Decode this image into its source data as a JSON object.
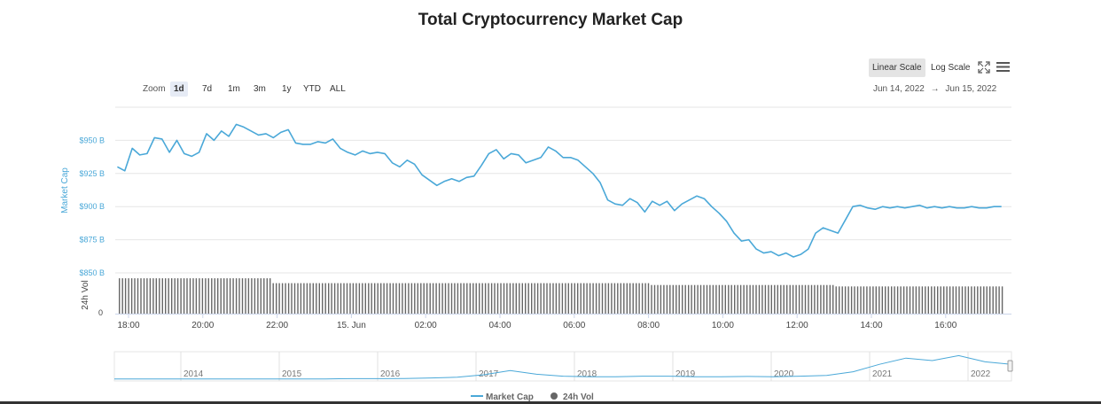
{
  "title": "Total Cryptocurrency Market Cap",
  "zoom": {
    "label": "Zoom",
    "buttons": [
      "1d",
      "7d",
      "1m",
      "3m",
      "1y",
      "YTD",
      "ALL"
    ],
    "active": "1d"
  },
  "scale": {
    "linear": "Linear Scale",
    "log": "Log Scale",
    "active": "Linear Scale"
  },
  "range": {
    "from": "Jun 14, 2022",
    "arrow": "→",
    "to": "Jun 15, 2022"
  },
  "icons": {
    "fullscreen": "fullscreen-icon",
    "menu": "hamburger-menu-icon"
  },
  "colors": {
    "market_cap": "#4aa8d8",
    "volume": "#666666",
    "accent": "#4aa8d8"
  },
  "chart_data": {
    "type": "line",
    "title": "Total Cryptocurrency Market Cap",
    "ylabel": "Market Cap",
    "y2label": "24h Vol",
    "yticks": [
      "$850 B",
      "$875 B",
      "$900 B",
      "$925 B",
      "$950 B"
    ],
    "ylim": [
      850,
      975
    ],
    "y2ticks": [
      "0"
    ],
    "xlabels": [
      "18:00",
      "20:00",
      "22:00",
      "15. Jun",
      "02:00",
      "04:00",
      "06:00",
      "08:00",
      "10:00",
      "12:00",
      "14:00",
      "16:00"
    ],
    "x_hours": [
      0,
      2,
      4,
      6,
      8,
      10,
      12,
      14,
      16,
      18,
      20,
      22
    ],
    "x_start_label": "Jun 14, 2022 17:50",
    "series": [
      {
        "name": "Market Cap",
        "unit": "$B",
        "x_hours": [
          -0.3,
          -0.1,
          0.1,
          0.3,
          0.5,
          0.7,
          0.9,
          1.1,
          1.3,
          1.5,
          1.7,
          1.9,
          2.1,
          2.3,
          2.5,
          2.7,
          2.9,
          3.1,
          3.3,
          3.5,
          3.7,
          3.9,
          4.1,
          4.3,
          4.5,
          4.7,
          4.9,
          5.1,
          5.3,
          5.5,
          5.7,
          5.9,
          6.1,
          6.3,
          6.5,
          6.7,
          6.9,
          7.1,
          7.3,
          7.5,
          7.7,
          7.9,
          8.1,
          8.3,
          8.5,
          8.7,
          8.9,
          9.1,
          9.3,
          9.5,
          9.7,
          9.9,
          10.1,
          10.3,
          10.5,
          10.7,
          10.9,
          11.1,
          11.3,
          11.5,
          11.7,
          11.9,
          12.1,
          12.3,
          12.5,
          12.7,
          12.9,
          13.1,
          13.3,
          13.5,
          13.7,
          13.9,
          14.1,
          14.3,
          14.5,
          14.7,
          14.9,
          15.1,
          15.3,
          15.5,
          15.7,
          15.9,
          16.1,
          16.3,
          16.5,
          16.7,
          16.9,
          17.1,
          17.3,
          17.5,
          17.7,
          17.9,
          18.1,
          18.3,
          18.5,
          18.7,
          18.9,
          19.1,
          19.3,
          19.5,
          19.7,
          19.9,
          20.1,
          20.3,
          20.5,
          20.7,
          20.9,
          21.1,
          21.3,
          21.5,
          21.7,
          21.9,
          22.1,
          22.3,
          22.5,
          22.7,
          22.9,
          23.1,
          23.3,
          23.5
        ],
        "values": [
          930,
          927,
          944,
          939,
          940,
          952,
          951,
          941,
          950,
          940,
          938,
          941,
          955,
          950,
          957,
          953,
          962,
          960,
          957,
          954,
          955,
          952,
          956,
          958,
          948,
          947,
          947,
          949,
          948,
          951,
          944,
          941,
          939,
          942,
          940,
          941,
          940,
          933,
          930,
          935,
          932,
          924,
          920,
          916,
          919,
          921,
          919,
          922,
          923,
          931,
          940,
          943,
          936,
          940,
          939,
          933,
          935,
          937,
          945,
          942,
          937,
          937,
          935,
          930,
          925,
          918,
          905,
          902,
          901,
          906,
          903,
          896,
          904,
          901,
          904,
          897,
          902,
          905,
          908,
          906,
          900,
          895,
          889,
          880,
          874,
          875,
          868,
          865,
          866,
          863,
          865,
          862,
          864,
          868,
          880,
          884,
          882,
          880,
          890,
          900,
          901,
          899,
          898,
          900,
          899,
          900,
          899,
          900,
          901,
          899,
          900,
          899,
          900,
          899,
          899,
          900,
          899,
          899,
          900,
          900
        ]
      },
      {
        "name": "24h Vol",
        "unit": "relative",
        "segments": [
          {
            "from_hour": -0.3,
            "to_hour": 3.8,
            "level": 0.95
          },
          {
            "from_hour": 3.8,
            "to_hour": 14.0,
            "level": 0.82
          },
          {
            "from_hour": 14.0,
            "to_hour": 19.0,
            "level": 0.77
          },
          {
            "from_hour": 19.0,
            "to_hour": 23.5,
            "level": 0.73
          }
        ]
      }
    ],
    "navigator": {
      "years": [
        "2014",
        "2015",
        "2016",
        "2017",
        "2018",
        "2019",
        "2020",
        "2021",
        "2022"
      ],
      "values": [
        0.01,
        0.01,
        0.01,
        0.01,
        0.01,
        0.01,
        0.01,
        0.01,
        0.01,
        0.02,
        0.02,
        0.03,
        0.05,
        0.08,
        0.18,
        0.35,
        0.2,
        0.12,
        0.1,
        0.1,
        0.12,
        0.12,
        0.1,
        0.1,
        0.11,
        0.1,
        0.12,
        0.15,
        0.3,
        0.6,
        0.85,
        0.75,
        0.95,
        0.7,
        0.6
      ]
    }
  },
  "legend": [
    {
      "label": "Market Cap",
      "symbol": "line"
    },
    {
      "label": "24h Vol",
      "symbol": "dot"
    }
  ]
}
